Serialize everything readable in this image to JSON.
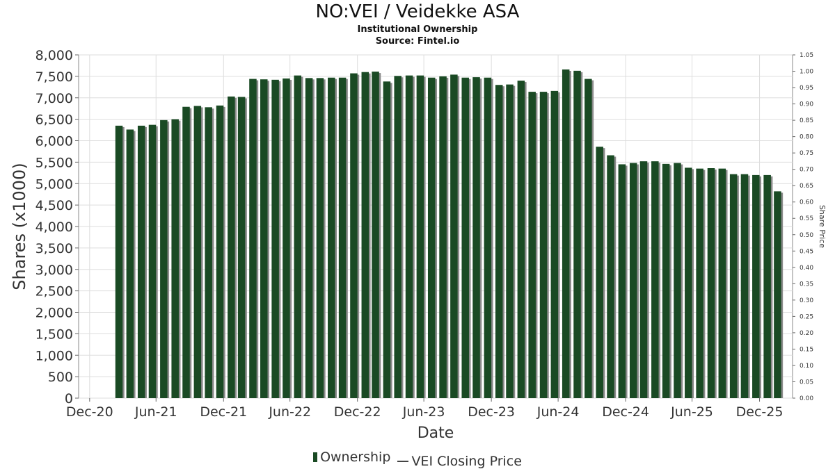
{
  "chart_data": {
    "type": "bar",
    "title": "NO:VEI / Veidekke ASA",
    "subtitle": "Institutional Ownership",
    "source": "Source: Fintel.io",
    "xlabel": "Date",
    "ylabel": "Shares (x1000)",
    "y2label": "Share Price",
    "ylim": [
      0,
      8000
    ],
    "y2lim": [
      0,
      1.05
    ],
    "grid": true,
    "legend_position": "bottom",
    "colors": {
      "bar": "#1a4a24",
      "bar_shadow": "#8a8a8a",
      "grid": "#dddddd",
      "axis": "#888888"
    },
    "x_ticks": [
      "Dec-20",
      "Jun-21",
      "Dec-21",
      "Jun-22",
      "Dec-22",
      "Jun-23",
      "Dec-23",
      "Jun-24",
      "Dec-24",
      "Jun-25",
      "Dec-25"
    ],
    "y_ticks": [
      "0",
      "500",
      "1,000",
      "1,500",
      "2,000",
      "2,500",
      "3,000",
      "3,500",
      "4,000",
      "4,500",
      "5,000",
      "5,500",
      "6,000",
      "6,500",
      "7,000",
      "7,500",
      "8,000"
    ],
    "y2_ticks": [
      "0.00",
      "0.05",
      "0.10",
      "0.15",
      "0.20",
      "0.25",
      "0.30",
      "0.35",
      "0.40",
      "0.45",
      "0.50",
      "0.55",
      "0.60",
      "0.65",
      "0.70",
      "0.75",
      "0.80",
      "0.85",
      "0.90",
      "0.95",
      "1.00",
      "1.05"
    ],
    "x_range": [
      "2020-12-01",
      "2026-03-31"
    ],
    "series": [
      {
        "name": "Ownership",
        "dates": [
          "2021-03-31",
          "2021-04-30",
          "2021-05-31",
          "2021-06-30",
          "2021-07-31",
          "2021-08-31",
          "2021-09-30",
          "2021-10-31",
          "2021-11-30",
          "2021-12-31",
          "2022-01-31",
          "2022-02-28",
          "2022-03-31",
          "2022-04-30",
          "2022-05-31",
          "2022-06-30",
          "2022-07-31",
          "2022-08-31",
          "2022-09-30",
          "2022-10-31",
          "2022-11-30",
          "2022-12-31",
          "2023-01-31",
          "2023-02-28",
          "2023-03-31",
          "2023-04-30",
          "2023-05-31",
          "2023-06-30",
          "2023-07-31",
          "2023-08-31",
          "2023-09-30",
          "2023-10-31",
          "2023-11-30",
          "2023-12-31",
          "2024-01-31",
          "2024-02-29",
          "2024-03-31",
          "2024-04-30",
          "2024-05-31",
          "2024-06-30",
          "2024-07-31",
          "2024-08-31",
          "2024-09-30",
          "2024-10-31",
          "2024-11-30",
          "2024-12-31",
          "2025-01-31",
          "2025-02-28",
          "2025-03-31",
          "2025-04-30",
          "2025-05-31",
          "2025-06-30",
          "2025-07-31",
          "2025-08-31",
          "2025-09-30",
          "2025-10-31",
          "2025-11-30",
          "2025-12-31",
          "2026-01-31",
          "2026-02-28"
        ],
        "values": [
          6350,
          6260,
          6350,
          6370,
          6480,
          6500,
          6790,
          6810,
          6780,
          6820,
          7030,
          7020,
          7440,
          7430,
          7420,
          7450,
          7520,
          7460,
          7460,
          7470,
          7470,
          7570,
          7600,
          7610,
          7380,
          7510,
          7520,
          7520,
          7470,
          7500,
          7540,
          7470,
          7480,
          7470,
          7300,
          7310,
          7400,
          7140,
          7140,
          7160,
          7660,
          7630,
          7440,
          5860,
          5660,
          5450,
          5480,
          5520,
          5520,
          5460,
          5480,
          5370,
          5350,
          5360,
          5350,
          5220,
          5220,
          5200,
          5200,
          4820
        ]
      },
      {
        "name": "VEI Closing Price",
        "values": []
      }
    ]
  },
  "legend": {
    "ownership": "Ownership",
    "price": "VEI Closing Price"
  }
}
